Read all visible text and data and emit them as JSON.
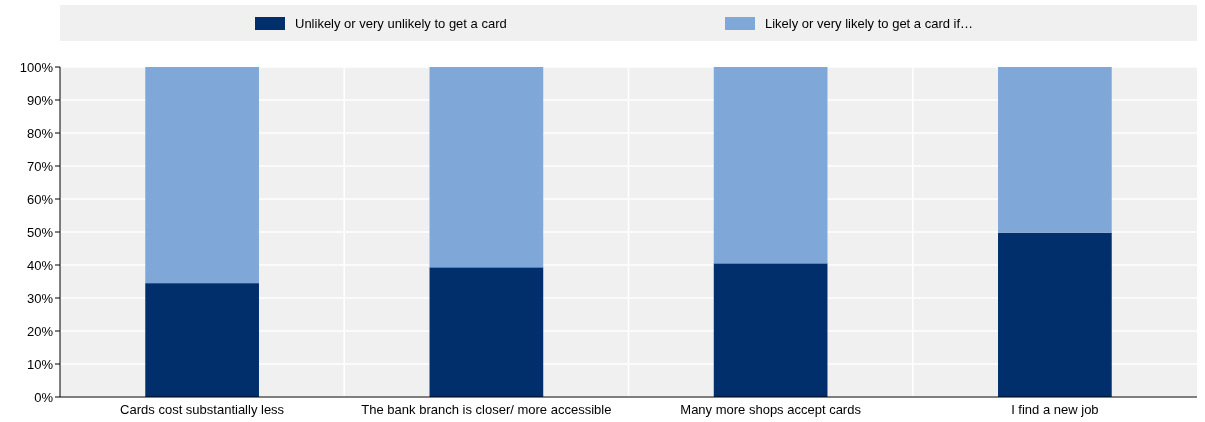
{
  "chart_data": {
    "type": "bar",
    "stacked": true,
    "categories": [
      "Cards cost substantially less",
      "The bank branch is closer/ more accessible",
      "Many more shops accept cards",
      "I find a new job"
    ],
    "series": [
      {
        "name": "Unlikely or very unlikely to get a card",
        "color": "#002f6c",
        "values": [
          34.5,
          39.3,
          40.5,
          49.8
        ]
      },
      {
        "name": "Likely or very likely to get a card if…",
        "color": "#7fa8d9",
        "values": [
          65.5,
          60.7,
          59.5,
          50.2
        ]
      }
    ],
    "ylim": [
      0,
      100
    ],
    "yticks": [
      {
        "value": 0,
        "label": "0%"
      },
      {
        "value": 10,
        "label": "10%"
      },
      {
        "value": 20,
        "label": "20%"
      },
      {
        "value": 30,
        "label": "30%"
      },
      {
        "value": 40,
        "label": "40%"
      },
      {
        "value": 50,
        "label": "50%"
      },
      {
        "value": 60,
        "label": "60%"
      },
      {
        "value": 70,
        "label": "70%"
      },
      {
        "value": 80,
        "label": "80%"
      },
      {
        "value": 90,
        "label": "90%"
      },
      {
        "value": 100,
        "label": "100%"
      }
    ],
    "grid": true,
    "legend": "top"
  }
}
